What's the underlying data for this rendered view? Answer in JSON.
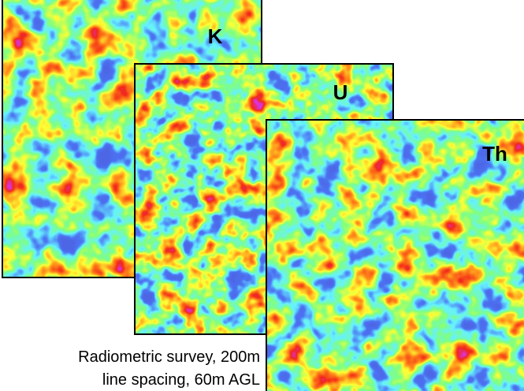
{
  "panels": [
    {
      "label": "K"
    },
    {
      "label": "U"
    },
    {
      "label": "Th"
    }
  ],
  "caption": {
    "lines": [
      "Radiometric survey, 200m",
      "line spacing, 60m AGL"
    ]
  }
}
